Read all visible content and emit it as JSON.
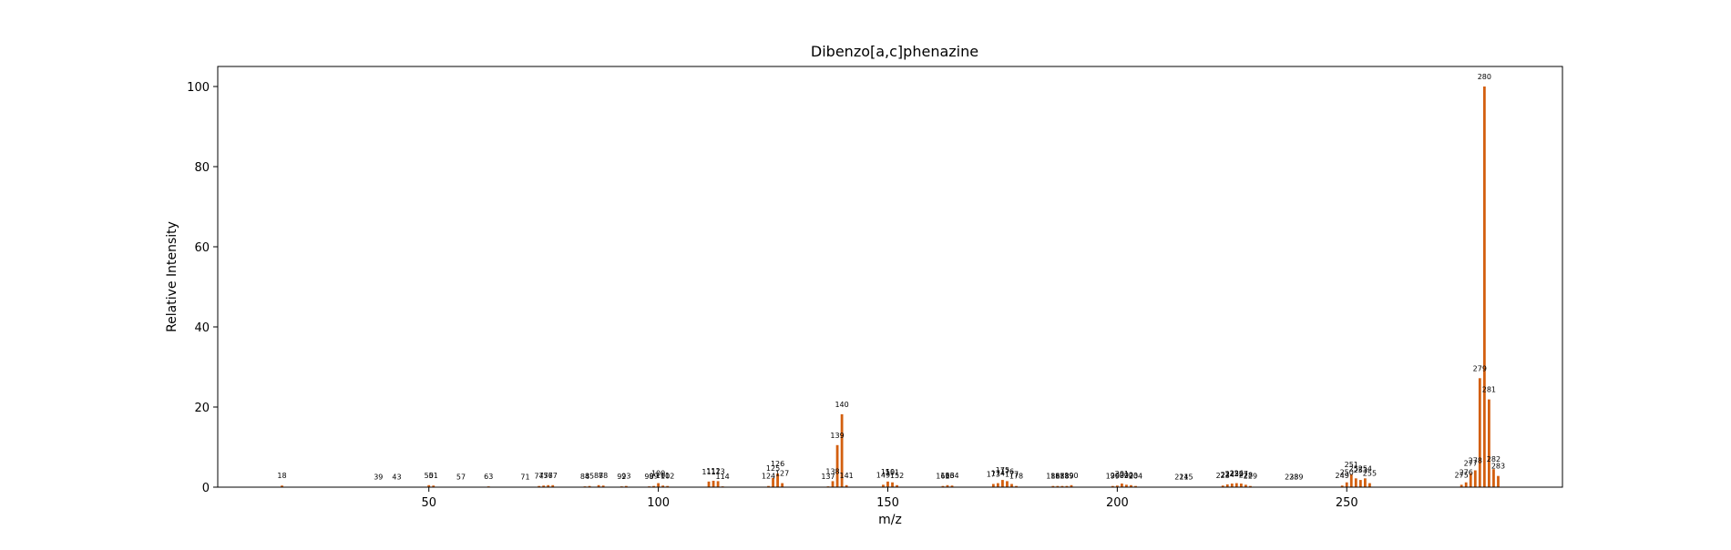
{
  "chart_data": {
    "type": "bar",
    "title": "Dibenzo[a,c]phenazine",
    "xlabel": "m/z",
    "ylabel": "Relative Intensity",
    "xlim": [
      4,
      297
    ],
    "ylim": [
      0,
      105
    ],
    "x_ticks": [
      50,
      100,
      150,
      200,
      250
    ],
    "y_ticks": [
      0,
      20,
      40,
      60,
      80,
      100
    ],
    "grid": false,
    "bar_color": "#d35f0f",
    "x": [
      18,
      39,
      43,
      50,
      51,
      57,
      63,
      71,
      74,
      75,
      76,
      77,
      84,
      85,
      87,
      88,
      92,
      93,
      98,
      99,
      100,
      101,
      102,
      111,
      112,
      113,
      114,
      124,
      125,
      126,
      127,
      137,
      138,
      139,
      140,
      141,
      149,
      150,
      151,
      152,
      162,
      163,
      164,
      173,
      174,
      175,
      176,
      177,
      178,
      186,
      187,
      188,
      189,
      190,
      199,
      200,
      201,
      202,
      203,
      204,
      214,
      215,
      223,
      224,
      225,
      226,
      227,
      228,
      229,
      238,
      239,
      249,
      250,
      251,
      252,
      253,
      254,
      255,
      275,
      276,
      277,
      278,
      279,
      280,
      281,
      282,
      283
    ],
    "values": [
      0.4,
      0.1,
      0.1,
      0.5,
      0.4,
      0.1,
      0.2,
      0.1,
      0.3,
      0.4,
      0.5,
      0.5,
      0.2,
      0.3,
      0.5,
      0.4,
      0.2,
      0.3,
      0.2,
      0.3,
      1.0,
      0.4,
      0.3,
      1.4,
      1.6,
      1.5,
      0.2,
      0.3,
      2.3,
      3.4,
      1.0,
      0.2,
      1.5,
      10.5,
      18.2,
      0.5,
      0.6,
      1.4,
      1.2,
      0.5,
      0.3,
      0.5,
      0.4,
      0.8,
      1.0,
      1.8,
      1.5,
      0.8,
      0.3,
      0.3,
      0.3,
      0.3,
      0.3,
      0.5,
      0.3,
      0.4,
      0.9,
      0.6,
      0.5,
      0.3,
      0.1,
      0.1,
      0.4,
      0.7,
      0.9,
      1.0,
      0.9,
      0.6,
      0.3,
      0.1,
      0.1,
      0.4,
      1.2,
      3.2,
      2.2,
      1.8,
      2.2,
      1.0,
      0.6,
      1.2,
      3.5,
      4.2,
      27.2,
      100.0,
      21.9,
      4.5,
      2.8
    ]
  }
}
